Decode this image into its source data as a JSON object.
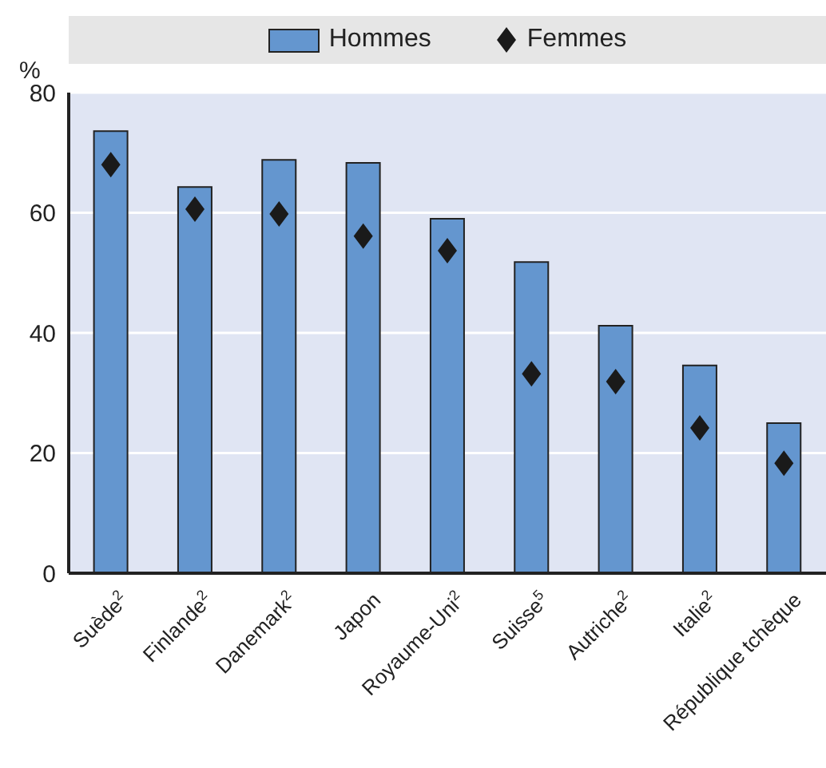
{
  "chart_data": {
    "type": "bar",
    "ylabel": "%",
    "legend": "top",
    "grid": "y",
    "marker": "diamond",
    "categories": [
      "Suède$^{2}$",
      "Finlande$^{2}$",
      "Danemark$^{2}$",
      "Japon",
      "Royaume-Uni$^{2}$",
      "Suisse$^{5}$",
      "Autriche$^{2}$",
      "Italie$^{2}$",
      "République tchèque"
    ],
    "series": [
      {
        "name": "Hommes",
        "color": "#6496cf",
        "values": [
          73.6,
          64.3,
          68.8,
          68.3,
          59,
          51.8,
          41.2,
          34.6,
          25
        ]
      },
      {
        "name": "Femmes",
        "type": "scatter",
        "color": "#1a1a1a",
        "values": [
          68,
          60.6,
          59.8,
          56.1,
          53.7,
          33.2,
          31.9,
          24.2,
          18.3
        ]
      }
    ],
    "ylim": [
      0,
      80
    ],
    "yticks": [
      0,
      20,
      40,
      60,
      80
    ]
  }
}
